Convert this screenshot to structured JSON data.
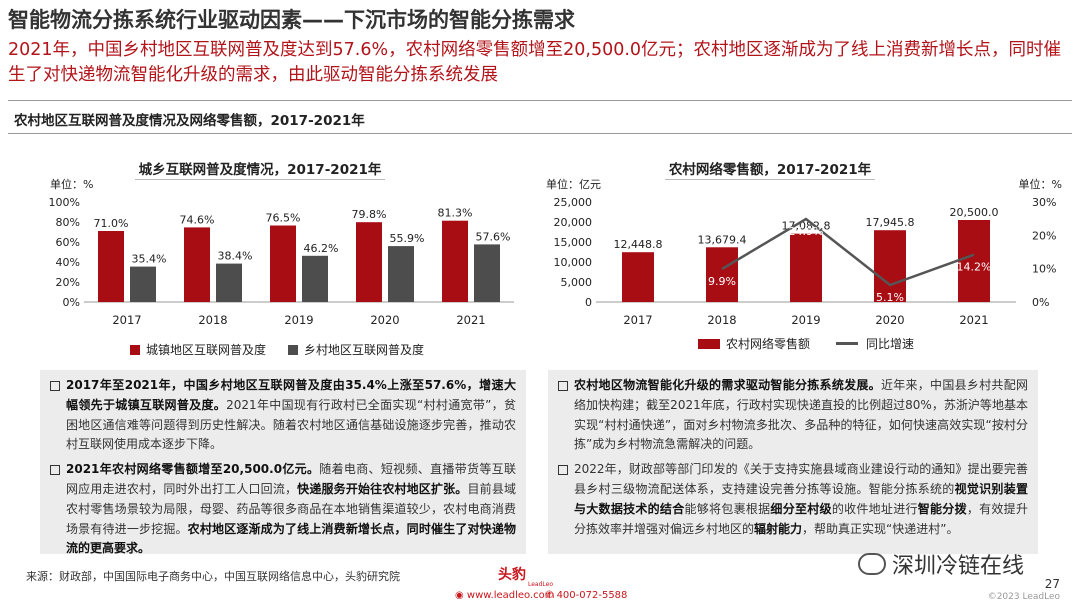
{
  "page": {
    "title": "智能物流分拣系统行业驱动因素——下沉市场的智能分拣需求",
    "subtitle": "2021年，中国乡村地区互联网普及度达到57.6%，农村网络零售额增至20,500.0亿元；农村地区逐渐成为了线上消费新增长点，同时催生了对快递物流智能化升级的需求，由此驱动智能分拣系统发展",
    "section_heading": "农村地区互联网普及度情况及网络零售额，2017-2021年",
    "source": "来源：财政部，中国国际电子商务中心，中国互联网络信息中心，头豹研究院",
    "logo_text": "头豹",
    "logo_sub": "LeadLeo",
    "website": "www.leadleo.com",
    "phone": "400-072-5588",
    "watermark": "深圳冷链在线",
    "page_number": "27",
    "copyright": "©2023 LeadLeo"
  },
  "chart_data": [
    {
      "type": "bar",
      "title": "城乡互联网普及度情况，2017-2021年",
      "unit_label": "单位：%",
      "categories": [
        "2017",
        "2018",
        "2019",
        "2020",
        "2021"
      ],
      "series": [
        {
          "name": "城镇地区互联网普及度",
          "values": [
            71.0,
            74.6,
            76.5,
            79.8,
            81.3
          ],
          "color": "#a80d14"
        },
        {
          "name": "乡村地区互联网普及度",
          "values": [
            35.4,
            38.4,
            46.2,
            55.9,
            57.6
          ],
          "color": "#4d4d4d"
        }
      ],
      "value_labels": [
        [
          "71.0%",
          "74.6%",
          "76.5%",
          "79.8%",
          "81.3%"
        ],
        [
          "35.4%",
          "38.4%",
          "46.2%",
          "55.9%",
          "57.6%"
        ]
      ],
      "ylim": [
        0,
        100
      ],
      "yticks": [
        "0%",
        "20%",
        "40%",
        "60%",
        "80%",
        "100%"
      ],
      "legend": "bottom"
    },
    {
      "type": "bar",
      "title": "农村网络零售额，2017-2021年",
      "unit_label_left": "单位：亿元",
      "unit_label_right": "单位：%",
      "categories": [
        "2017",
        "2018",
        "2019",
        "2020",
        "2021"
      ],
      "series": [
        {
          "name": "农村网络零售额",
          "type": "bar",
          "axis": "left",
          "values": [
            12448.8,
            13679.4,
            17082.8,
            17945.8,
            20500.0
          ],
          "color": "#a80d14"
        },
        {
          "name": "同比增速",
          "type": "line",
          "axis": "right",
          "values": [
            null,
            9.9,
            24.9,
            5.1,
            14.2
          ],
          "color": "#555555"
        }
      ],
      "value_labels": [
        "12,448.8",
        "13,679.4",
        "17,082.8",
        "17,945.8",
        "20,500.0"
      ],
      "growth_labels": [
        "",
        "9.9%",
        "24.9%",
        "5.1%",
        "14.2%"
      ],
      "ylim_left": [
        0,
        25000
      ],
      "yticks_left": [
        "0",
        "5,000",
        "10,000",
        "15,000",
        "20,000",
        "25,000"
      ],
      "ylim_right": [
        0,
        30
      ],
      "yticks_right": [
        "0%",
        "10%",
        "20%",
        "30%"
      ],
      "legend": "bottom"
    }
  ],
  "left_text": [
    {
      "parts": [
        {
          "t": "2017年至2021年，中国乡村地区互联网普及度由35.4%上涨至57.6%，增速大幅领先于城镇互联网普及度。",
          "b": true
        },
        {
          "t": "2021年中国现有行政村已全面实现“村村通宽带”，贫困地区通信难等问题得到历史性解决。随着农村地区通信基础设施逐步完善，推动农村互联网使用成本逐步下降。",
          "b": false
        }
      ]
    },
    {
      "parts": [
        {
          "t": "2021年农村网络零售额增至20,500.0亿元。",
          "b": true
        },
        {
          "t": "随着电商、短视频、直播带货等互联网应用走进农村，同时外出打工人口回流，",
          "b": false
        },
        {
          "t": "快递服务开始往农村地区扩张。",
          "b": true
        },
        {
          "t": "目前县域农村零售场景较为局限，母婴、药品等很多商品在本地销售渠道较少，农村电商消费场景有待进一步挖掘。",
          "b": false
        },
        {
          "t": "农村地区逐渐成为了线上消费新增长点，同时催生了对快递物流的更高要求。",
          "b": true
        }
      ]
    }
  ],
  "right_text": [
    {
      "parts": [
        {
          "t": "农村地区物流智能化升级的需求驱动智能分拣系统发展。",
          "b": true
        },
        {
          "t": "近年来，中国县乡村共配网络加快构建；截至2021年底，行政村实现快递直投的比例超过80%，苏浙沪等地基本实现“村村通快递”，面对乡村物流多批次、多品种的特征，如何快速高效实现“按村分拣”成为乡村物流急需解决的问题。",
          "b": false
        }
      ]
    },
    {
      "parts": [
        {
          "t": "2022年，财政部等部门印发的《关于支持实施县域商业建设行动的通知》提出要完善县乡村三级物流配送体系，支持建设完善分拣等设施。智能分拣系统的",
          "b": false
        },
        {
          "t": "视觉识别装置与大数据技术的结合",
          "b": true
        },
        {
          "t": "能够将包裹根据",
          "b": false
        },
        {
          "t": "细分至村级",
          "b": true
        },
        {
          "t": "的收件地址进行",
          "b": false
        },
        {
          "t": "智能分拨",
          "b": true
        },
        {
          "t": "，有效提升分拣效率并增强对偏远乡村地区的",
          "b": false
        },
        {
          "t": "辐射能力",
          "b": true
        },
        {
          "t": "，帮助真正实现“快递进村”。",
          "b": false
        }
      ]
    }
  ]
}
